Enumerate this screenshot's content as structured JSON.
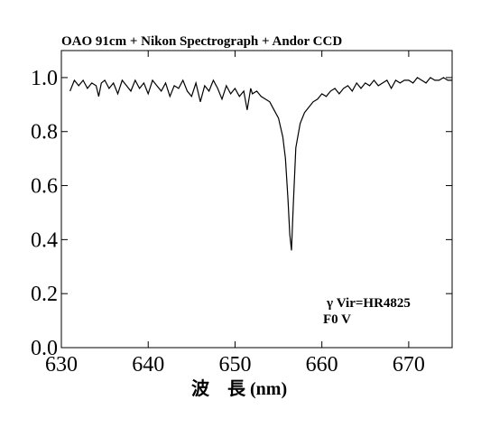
{
  "chart_data": {
    "type": "line",
    "title": "OAO 91cm + Nikon Spectrograph + Andor CCD",
    "xlabel": "波　長 (nm)",
    "ylabel": "",
    "xlim": [
      630,
      675
    ],
    "ylim": [
      0.0,
      1.1
    ],
    "x_ticks": [
      630,
      640,
      650,
      660,
      670
    ],
    "x_tick_labels": [
      "630",
      "640",
      "650",
      "660",
      "670"
    ],
    "y_ticks": [
      0.0,
      0.2,
      0.4,
      0.6,
      0.8,
      1.0
    ],
    "y_tick_labels": [
      "0.0",
      "0.2",
      "0.4",
      "0.6",
      "0.8",
      "1.0"
    ],
    "annotations": [
      "γ Vir=HR4825",
      "F0 V"
    ],
    "grid": false,
    "series": [
      {
        "color": "#000000",
        "x": [
          631.0,
          631.5,
          632.0,
          632.5,
          633.0,
          633.5,
          634.0,
          634.3,
          634.6,
          635.0,
          635.5,
          636.0,
          636.5,
          637.0,
          637.5,
          638.0,
          638.5,
          639.0,
          639.5,
          640.0,
          640.5,
          641.0,
          641.5,
          642.0,
          642.5,
          643.0,
          643.5,
          644.0,
          644.5,
          645.0,
          645.5,
          646.0,
          646.5,
          647.0,
          647.5,
          648.0,
          648.5,
          649.0,
          649.5,
          650.0,
          650.5,
          651.0,
          651.4,
          651.8,
          652.0,
          652.5,
          653.0,
          653.5,
          654.0,
          654.5,
          655.0,
          655.5,
          655.8,
          656.1,
          656.3,
          656.5,
          656.7,
          657.0,
          657.5,
          658.0,
          658.5,
          659.0,
          659.5,
          660.0,
          660.5,
          661.0,
          661.5,
          662.0,
          662.5,
          663.0,
          663.5,
          664.0,
          664.5,
          665.0,
          665.5,
          666.0,
          666.5,
          667.0,
          667.5,
          668.0,
          668.5,
          669.0,
          669.5,
          670.0,
          670.5,
          671.0,
          671.5,
          672.0,
          672.5,
          673.0,
          673.5,
          674.0,
          674.5,
          675.0
        ],
        "y": [
          0.95,
          0.99,
          0.97,
          0.99,
          0.96,
          0.98,
          0.97,
          0.93,
          0.98,
          0.99,
          0.96,
          0.98,
          0.94,
          0.99,
          0.97,
          0.95,
          0.99,
          0.96,
          0.98,
          0.94,
          0.99,
          0.97,
          0.95,
          0.98,
          0.93,
          0.97,
          0.96,
          0.99,
          0.95,
          0.93,
          0.98,
          0.91,
          0.97,
          0.95,
          0.99,
          0.96,
          0.92,
          0.97,
          0.94,
          0.96,
          0.93,
          0.95,
          0.88,
          0.96,
          0.94,
          0.95,
          0.93,
          0.92,
          0.91,
          0.88,
          0.85,
          0.78,
          0.7,
          0.55,
          0.42,
          0.36,
          0.52,
          0.74,
          0.83,
          0.87,
          0.89,
          0.91,
          0.92,
          0.94,
          0.93,
          0.95,
          0.96,
          0.94,
          0.96,
          0.97,
          0.95,
          0.98,
          0.96,
          0.98,
          0.97,
          0.99,
          0.97,
          0.98,
          0.99,
          0.96,
          0.99,
          0.98,
          0.99,
          0.99,
          0.98,
          1.0,
          0.99,
          0.98,
          1.0,
          0.99,
          0.99,
          1.0,
          0.99,
          0.99
        ]
      }
    ]
  }
}
